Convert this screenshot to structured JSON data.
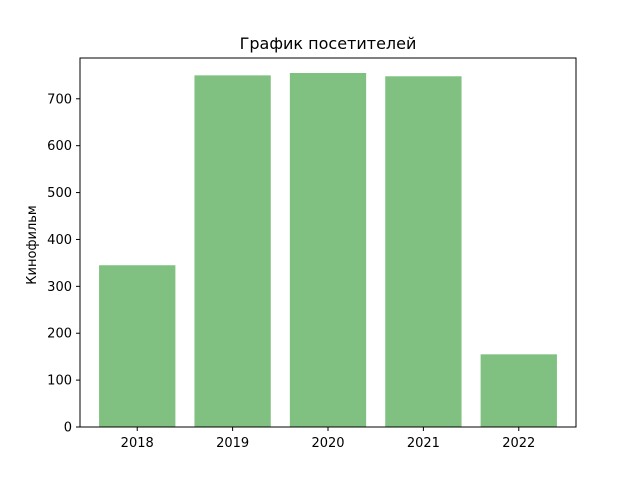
{
  "chart_data": {
    "type": "bar",
    "title": "График посетителей",
    "xlabel": "",
    "ylabel": "Кинофильм",
    "categories": [
      "2018",
      "2019",
      "2020",
      "2021",
      "2022"
    ],
    "values": [
      345,
      750,
      755,
      748,
      155
    ],
    "ylim": [
      0,
      787
    ],
    "yticks": [
      0,
      100,
      200,
      300,
      400,
      500,
      600,
      700
    ],
    "bar_color": "#80c080",
    "grid": false,
    "legend": "none"
  }
}
